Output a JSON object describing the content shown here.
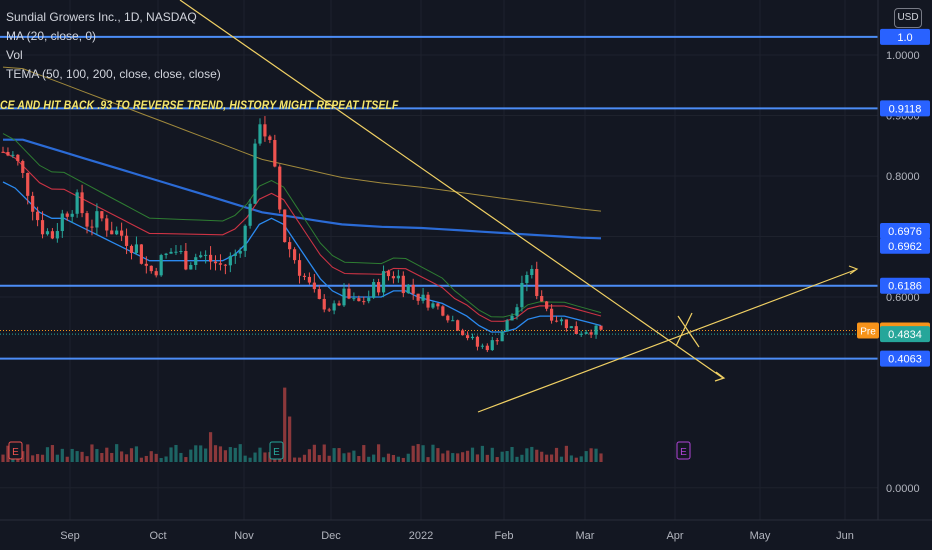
{
  "legend": {
    "title": "Sundial Growers Inc., 1D, NASDAQ",
    "ma": "MA (20, close, 0)",
    "vol": "Vol",
    "tema": "TEMA (50, 100, 200, close, close, close)"
  },
  "annotation": "CE AND HIT BACK .93 TO REVERSE TREND, HISTORY MIGHT REPEAT ITSELF",
  "currency": "USD",
  "colors": {
    "background": "#131722",
    "up": "#26a69a",
    "down": "#ef5350",
    "level_line": "#4c8df6",
    "trendline": "#f0d064",
    "ma": "#2b8af0",
    "tema50": "#cc3344",
    "tema100": "#2e7d32",
    "tema200_blue": "#2b6bd6",
    "tema200_gold": "#a0893c",
    "pre_badge": "#f7931a",
    "last_badge": "#26a69a",
    "annotation": "#f7e76b"
  },
  "chart_data": {
    "type": "candlestick",
    "symbol": "Sundial Growers Inc.",
    "interval": "1D",
    "exchange": "NASDAQ",
    "x_ticks": [
      "Sep",
      "Oct",
      "Nov",
      "Dec",
      "2022",
      "Feb",
      "Mar",
      "Apr",
      "May",
      "Jun"
    ],
    "y_ticks": [
      1.0,
      0.9,
      0.8,
      0.7,
      0.6,
      0.0
    ],
    "y_tick_labels": [
      "1.0000",
      "0.9000",
      "0.8000",
      "0.7000",
      "0.6000",
      "0.0000"
    ],
    "price_labels": [
      {
        "label": "1.0",
        "value": 1.03,
        "style": "level"
      },
      {
        "label": "0.9118",
        "value": 0.9118,
        "style": "level"
      },
      {
        "label": "0.6976",
        "value": 0.6976,
        "style": "level"
      },
      {
        "label": "0.6962",
        "value": 0.6962,
        "style": "level"
      },
      {
        "label": "0.6186",
        "value": 0.6186,
        "style": "level"
      },
      {
        "label": "Pre",
        "value": 0.4945,
        "style": "pre-tag"
      },
      {
        "label": "0.4945",
        "value": 0.4945,
        "style": "pre"
      },
      {
        "label": "0.4834",
        "value": 0.4834,
        "style": "last"
      },
      {
        "label": "0.4063",
        "value": 0.4063,
        "style": "level"
      }
    ],
    "horizontal_levels": [
      1.03,
      0.9118,
      0.6186,
      0.4063
    ],
    "earnings_markers": [
      "E",
      "E",
      "E"
    ],
    "close_path": [
      0.84,
      0.83,
      0.78,
      0.72,
      0.7,
      0.74,
      0.76,
      0.72,
      0.73,
      0.71,
      0.7,
      0.68,
      0.64,
      0.66,
      0.68,
      0.66,
      0.67,
      0.66,
      0.65,
      0.67,
      0.72,
      0.9,
      0.84,
      0.7,
      0.66,
      0.62,
      0.58,
      0.56,
      0.6,
      0.58,
      0.6,
      0.63,
      0.64,
      0.62,
      0.6,
      0.58,
      0.56,
      0.52,
      0.48,
      0.44,
      0.45,
      0.5,
      0.56,
      0.65,
      0.6,
      0.54,
      0.52,
      0.49,
      0.5,
      0.49
    ],
    "moving_average": [
      0.79,
      0.78,
      0.76,
      0.74,
      0.73,
      0.73,
      0.72,
      0.71,
      0.7,
      0.69,
      0.68,
      0.67,
      0.66,
      0.66,
      0.66,
      0.66,
      0.66,
      0.66,
      0.66,
      0.67,
      0.69,
      0.72,
      0.73,
      0.72,
      0.69,
      0.66,
      0.63,
      0.61,
      0.6,
      0.6,
      0.6,
      0.6,
      0.61,
      0.61,
      0.6,
      0.59,
      0.58,
      0.56,
      0.54,
      0.51,
      0.49,
      0.49,
      0.5,
      0.53,
      0.54,
      0.54,
      0.54,
      0.53,
      0.52,
      0.51
    ],
    "tema_200": [
      0.86,
      0.86,
      0.85,
      0.84,
      0.83,
      0.82,
      0.81,
      0.8,
      0.79,
      0.78,
      0.77,
      0.76,
      0.75,
      0.74,
      0.735,
      0.73,
      0.725,
      0.72,
      0.718,
      0.716,
      0.715,
      0.714,
      0.712,
      0.71,
      0.708,
      0.706,
      0.704,
      0.702,
      0.7,
      0.698,
      0.697
    ]
  }
}
